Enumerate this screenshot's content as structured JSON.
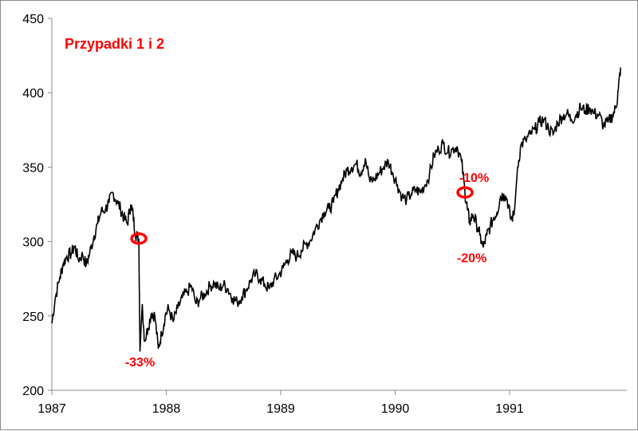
{
  "chart_data": {
    "type": "line",
    "title": "Przypadki 1 i 2",
    "xlabel": "",
    "ylabel": "",
    "ylim": [
      200,
      450
    ],
    "xlim": [
      1987.0,
      1992.0
    ],
    "y_ticks": [
      "200",
      "250",
      "300",
      "350",
      "400",
      "450"
    ],
    "x_ticks": [
      "1987",
      "1988",
      "1989",
      "1990",
      "1991"
    ],
    "grid": false,
    "colors": {
      "line": "#000000",
      "annotation": "#ff0000"
    },
    "series": [
      {
        "values_by_year": [
          [
            1987.0,
            245
          ],
          [
            1987.03,
            262
          ],
          [
            1987.07,
            276
          ],
          [
            1987.1,
            285
          ],
          [
            1987.13,
            290
          ],
          [
            1987.17,
            292
          ],
          [
            1987.2,
            297
          ],
          [
            1987.23,
            288
          ],
          [
            1987.27,
            291
          ],
          [
            1987.3,
            284
          ],
          [
            1987.33,
            292
          ],
          [
            1987.37,
            304
          ],
          [
            1987.4,
            312
          ],
          [
            1987.43,
            320
          ],
          [
            1987.47,
            322
          ],
          [
            1987.5,
            326
          ],
          [
            1987.53,
            333
          ],
          [
            1987.57,
            327
          ],
          [
            1987.6,
            322
          ],
          [
            1987.63,
            316
          ],
          [
            1987.66,
            312
          ],
          [
            1987.69,
            325
          ],
          [
            1987.71,
            318
          ],
          [
            1987.73,
            305
          ],
          [
            1987.76,
            302
          ],
          [
            1987.77,
            226
          ],
          [
            1987.79,
            258
          ],
          [
            1987.81,
            233
          ],
          [
            1987.84,
            242
          ],
          [
            1987.87,
            252
          ],
          [
            1987.9,
            250
          ],
          [
            1987.93,
            228
          ],
          [
            1987.96,
            238
          ],
          [
            1987.99,
            250
          ],
          [
            1988.02,
            255
          ],
          [
            1988.06,
            246
          ],
          [
            1988.1,
            255
          ],
          [
            1988.14,
            262
          ],
          [
            1988.18,
            266
          ],
          [
            1988.22,
            270
          ],
          [
            1988.26,
            258
          ],
          [
            1988.3,
            262
          ],
          [
            1988.34,
            265
          ],
          [
            1988.38,
            270
          ],
          [
            1988.42,
            272
          ],
          [
            1988.46,
            268
          ],
          [
            1988.5,
            271
          ],
          [
            1988.54,
            268
          ],
          [
            1988.58,
            262
          ],
          [
            1988.62,
            259
          ],
          [
            1988.66,
            263
          ],
          [
            1988.7,
            268
          ],
          [
            1988.74,
            274
          ],
          [
            1988.78,
            278
          ],
          [
            1988.82,
            275
          ],
          [
            1988.86,
            271
          ],
          [
            1988.9,
            268
          ],
          [
            1988.94,
            274
          ],
          [
            1988.98,
            277
          ],
          [
            1989.02,
            282
          ],
          [
            1989.06,
            288
          ],
          [
            1989.1,
            292
          ],
          [
            1989.14,
            290
          ],
          [
            1989.18,
            294
          ],
          [
            1989.22,
            298
          ],
          [
            1989.26,
            301
          ],
          [
            1989.3,
            308
          ],
          [
            1989.34,
            314
          ],
          [
            1989.38,
            320
          ],
          [
            1989.42,
            322
          ],
          [
            1989.46,
            326
          ],
          [
            1989.5,
            335
          ],
          [
            1989.54,
            342
          ],
          [
            1989.58,
            348
          ],
          [
            1989.62,
            350
          ],
          [
            1989.66,
            352
          ],
          [
            1989.7,
            346
          ],
          [
            1989.74,
            356
          ],
          [
            1989.78,
            340
          ],
          [
            1989.82,
            342
          ],
          [
            1989.86,
            346
          ],
          [
            1989.9,
            350
          ],
          [
            1989.94,
            354
          ],
          [
            1989.98,
            346
          ],
          [
            1990.02,
            338
          ],
          [
            1990.06,
            330
          ],
          [
            1990.1,
            328
          ],
          [
            1990.14,
            332
          ],
          [
            1990.18,
            335
          ],
          [
            1990.22,
            333
          ],
          [
            1990.26,
            338
          ],
          [
            1990.3,
            345
          ],
          [
            1990.34,
            358
          ],
          [
            1990.38,
            362
          ],
          [
            1990.42,
            366
          ],
          [
            1990.46,
            360
          ],
          [
            1990.5,
            362
          ],
          [
            1990.54,
            364
          ],
          [
            1990.58,
            354
          ],
          [
            1990.61,
            333
          ],
          [
            1990.63,
            322
          ],
          [
            1990.65,
            313
          ],
          [
            1990.68,
            318
          ],
          [
            1990.71,
            312
          ],
          [
            1990.74,
            304
          ],
          [
            1990.77,
            296
          ],
          [
            1990.8,
            304
          ],
          [
            1990.83,
            310
          ],
          [
            1990.86,
            316
          ],
          [
            1990.89,
            320
          ],
          [
            1990.92,
            330
          ],
          [
            1990.95,
            332
          ],
          [
            1990.98,
            328
          ],
          [
            1991.01,
            315
          ],
          [
            1991.04,
            318
          ],
          [
            1991.07,
            350
          ],
          [
            1991.1,
            365
          ],
          [
            1991.14,
            368
          ],
          [
            1991.18,
            372
          ],
          [
            1991.22,
            375
          ],
          [
            1991.26,
            380
          ],
          [
            1991.3,
            382
          ],
          [
            1991.34,
            376
          ],
          [
            1991.38,
            372
          ],
          [
            1991.42,
            380
          ],
          [
            1991.46,
            384
          ],
          [
            1991.5,
            386
          ],
          [
            1991.54,
            382
          ],
          [
            1991.58,
            385
          ],
          [
            1991.62,
            390
          ],
          [
            1991.66,
            388
          ],
          [
            1991.7,
            390
          ],
          [
            1991.74,
            386
          ],
          [
            1991.78,
            385
          ],
          [
            1991.82,
            378
          ],
          [
            1991.86,
            380
          ],
          [
            1991.9,
            385
          ],
          [
            1991.93,
            390
          ],
          [
            1991.95,
            402
          ],
          [
            1991.97,
            417
          ]
        ]
      }
    ],
    "annotations": [
      {
        "type": "circle",
        "x": 1987.76,
        "y": 302
      },
      {
        "type": "circle",
        "x": 1990.61,
        "y": 333
      },
      {
        "type": "label",
        "text": "-33%",
        "x": 1987.77,
        "y": 216
      },
      {
        "type": "label",
        "text": "-10%",
        "x": 1990.69,
        "y": 340
      },
      {
        "type": "label",
        "text": "-20%",
        "x": 1990.67,
        "y": 286
      }
    ]
  }
}
